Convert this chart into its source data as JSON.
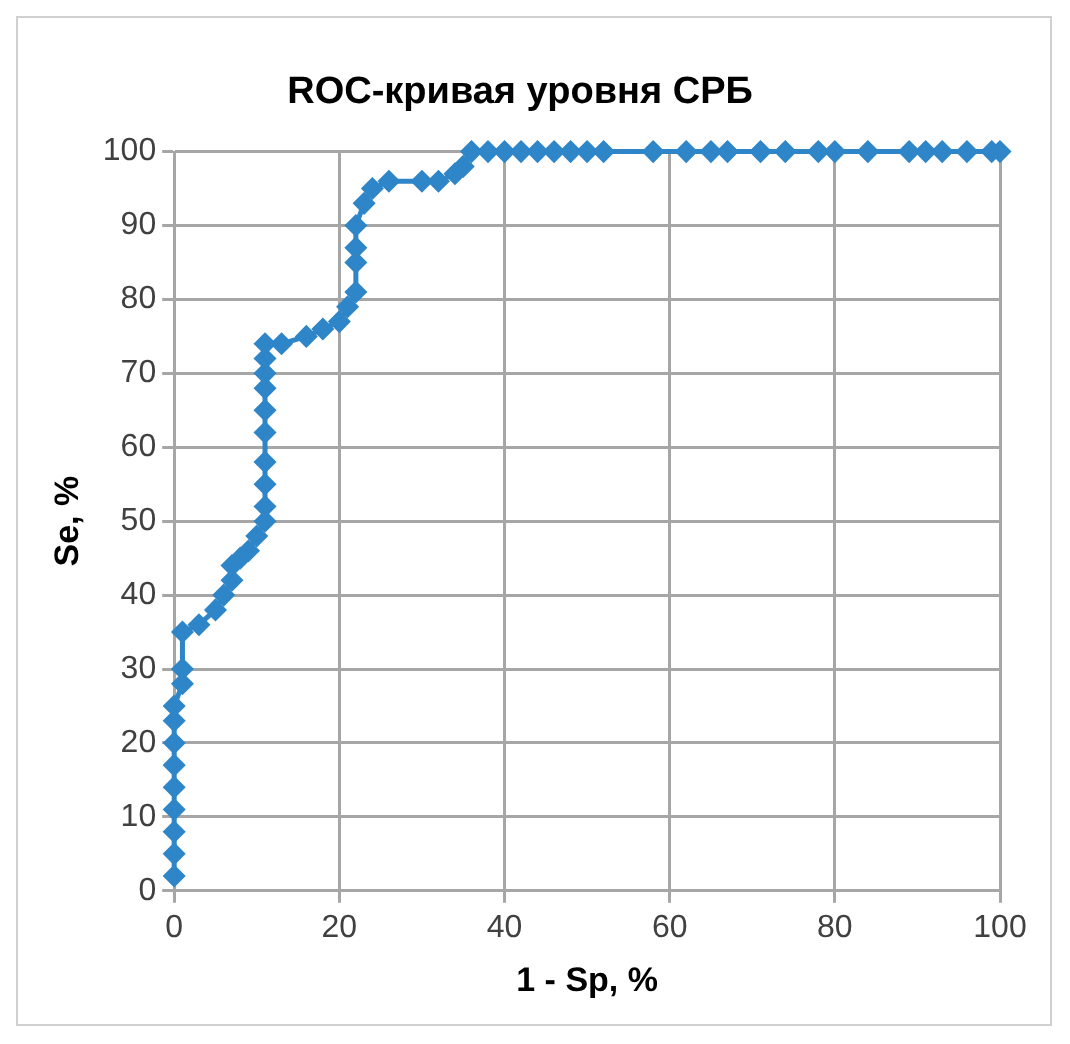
{
  "chart_data": {
    "type": "line",
    "title": "ROC-кривая уровня СРБ",
    "xlabel": "1 - Sp, %",
    "ylabel": "Se, %",
    "series": [
      {
        "color": "#2e86c8",
        "marker": "diamond",
        "line_style": "solid",
        "x": [
          0,
          0,
          0,
          0,
          0,
          0,
          0,
          0,
          0,
          1,
          1,
          1,
          3,
          5,
          6,
          7,
          7,
          8,
          9,
          10,
          11,
          11,
          11,
          11,
          11,
          11,
          11,
          11,
          11,
          11,
          13,
          16,
          18,
          20,
          21,
          22,
          22,
          22,
          22,
          23,
          24,
          26,
          30,
          32,
          34,
          35,
          36,
          38,
          40,
          42,
          44,
          46,
          48,
          50,
          52,
          58,
          62,
          65,
          67,
          71,
          74,
          78,
          80,
          84,
          89,
          91,
          93,
          96,
          99,
          100
        ],
        "values": [
          2,
          5,
          8,
          11,
          14,
          17,
          20,
          23,
          25,
          28,
          30,
          35,
          36,
          38,
          40,
          42,
          44,
          45,
          46,
          48,
          50,
          52,
          55,
          58,
          62,
          65,
          68,
          70,
          72,
          74,
          74,
          75,
          76,
          77,
          79,
          81,
          85,
          87,
          90,
          93,
          95,
          96,
          96,
          96,
          97,
          98,
          100,
          100,
          100,
          100,
          100,
          100,
          100,
          100,
          100,
          100,
          100,
          100,
          100,
          100,
          100,
          100,
          100,
          100,
          100,
          100,
          100,
          100,
          100,
          100
        ]
      }
    ],
    "xlim": [
      0,
      100
    ],
    "xticks": [
      0,
      20,
      40,
      60,
      80,
      100
    ],
    "ylim": [
      0,
      100
    ],
    "yticks": [
      0,
      10,
      20,
      30,
      40,
      50,
      60,
      70,
      80,
      90,
      100
    ],
    "grid": true,
    "legend": false
  }
}
